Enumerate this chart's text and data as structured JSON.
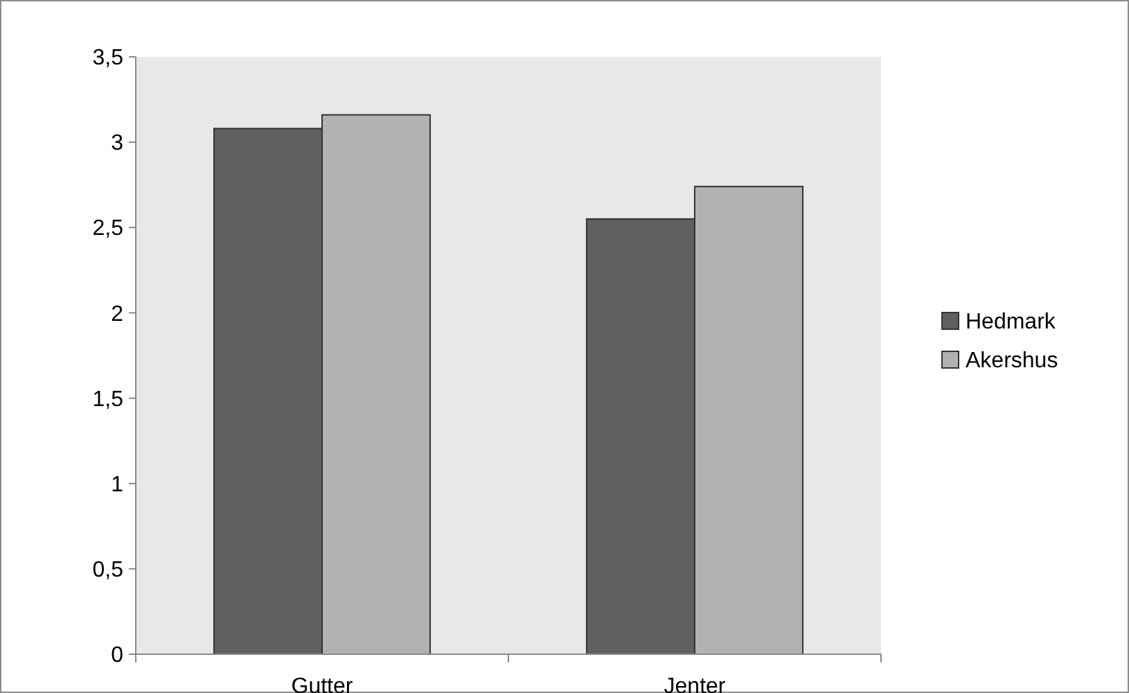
{
  "chart_data": {
    "type": "bar",
    "categories": [
      "Gutter",
      "Jenter"
    ],
    "series": [
      {
        "name": "Hedmark",
        "color": "#606060",
        "values": [
          3.08,
          2.55
        ]
      },
      {
        "name": "Akershus",
        "color": "#b2b2b2",
        "values": [
          3.16,
          2.74
        ]
      }
    ],
    "ylim": [
      0,
      3.5
    ],
    "yticks": [
      0,
      {
        "value": 0.5,
        "label": "0,5"
      },
      1,
      {
        "value": 1.5,
        "label": "1,5"
      },
      2,
      {
        "value": 2.5,
        "label": "2,5"
      },
      3,
      {
        "value": 3.5,
        "label": "3,5"
      }
    ],
    "grid": false,
    "legend": "right"
  }
}
